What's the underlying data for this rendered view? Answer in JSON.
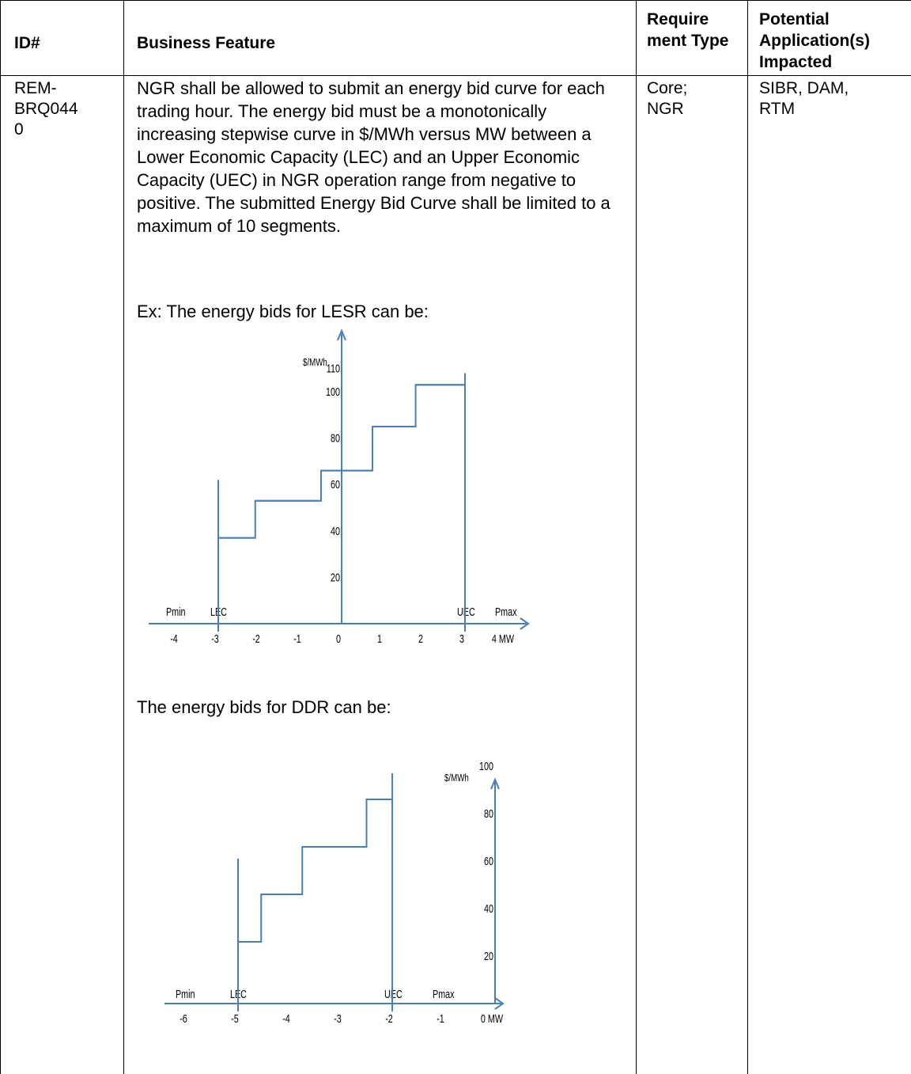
{
  "table": {
    "headers": {
      "id": "ID#",
      "feature": "Business Feature",
      "type": "Require ment Type",
      "apps": "Potential Application(s) Impacted"
    },
    "row": {
      "id_lines": [
        "REM-",
        "BRQ044",
        "0"
      ],
      "type_lines": [
        "Core;",
        "NGR"
      ],
      "apps_lines": [
        "SIBR, DAM,",
        "RTM"
      ],
      "description": "NGR shall be allowed to submit an energy bid curve for each trading hour. The energy bid must be a monotonically increasing stepwise curve in $/MWh versus MW between a Lower Economic Capacity (LEC) and an Upper Economic Capacity (UEC) in NGR operation range from negative to positive. The submitted Energy Bid Curve shall be limited to a maximum of 10 segments.",
      "example_lesr_label": "Ex: The energy bids for LESR can be:",
      "example_ddr_label": "The energy bids for DDR can be:"
    }
  },
  "chart_data": [
    {
      "type": "line",
      "series_style": "step",
      "ylabel": "$/MWh",
      "xlabel_unit": "MW",
      "x_ticks": [
        -4,
        -3,
        -2,
        -1,
        0,
        1,
        2,
        3,
        4
      ],
      "x_tick_labels": [
        "-4",
        "-3",
        "-2",
        "-1",
        "0",
        "1",
        "2",
        "3",
        "4 MW"
      ],
      "y_ticks": [
        20,
        40,
        60,
        80,
        100,
        110
      ],
      "y_tick_labels": [
        "20",
        "40",
        "60",
        "80",
        "100",
        "110"
      ],
      "xlim": [
        -4.5,
        4.8
      ],
      "ylim": [
        0,
        120
      ],
      "markers": [
        {
          "label": "Pmin",
          "x": -4
        },
        {
          "label": "LEC",
          "x": -3
        },
        {
          "label": "UEC",
          "x": 3
        },
        {
          "label": "Pmax",
          "x": 4
        }
      ],
      "lec": -3,
      "uec": 3,
      "lec_line_top": 62,
      "uec_line_top": 108,
      "steps": [
        {
          "x_start": -3,
          "x_end": -2.1,
          "price": 37
        },
        {
          "x_start": -2.1,
          "x_end": -0.5,
          "price": 53
        },
        {
          "x_start": -0.5,
          "x_end": 0.75,
          "price": 66
        },
        {
          "x_start": 0.75,
          "x_end": 1.8,
          "price": 85
        },
        {
          "x_start": 1.8,
          "x_end": 3,
          "price": 103
        }
      ]
    },
    {
      "type": "line",
      "series_style": "step",
      "ylabel": "$/MWh",
      "xlabel_unit": "MW",
      "x_ticks": [
        -6,
        -5,
        -4,
        -3,
        -2,
        -1,
        0
      ],
      "x_tick_labels": [
        "-6",
        "-5",
        "-4",
        "-3",
        "-2",
        "-1",
        "0 MW"
      ],
      "y_ticks": [
        20,
        40,
        60,
        80,
        100
      ],
      "y_tick_labels": [
        "20",
        "40",
        "60",
        "80",
        "100"
      ],
      "xlim": [
        -6.5,
        0.1
      ],
      "ylim": [
        0,
        105
      ],
      "markers": [
        {
          "label": "Pmin",
          "x": -6
        },
        {
          "label": "LEC",
          "x": -5
        },
        {
          "label": "UEC",
          "x": -2
        },
        {
          "label": "Pmax",
          "x": -1
        }
      ],
      "lec": -5,
      "uec": -2,
      "lec_line_top": 61,
      "uec_line_top": 97,
      "steps": [
        {
          "x_start": -5,
          "x_end": -4.55,
          "price": 26
        },
        {
          "x_start": -4.55,
          "x_end": -3.75,
          "price": 46
        },
        {
          "x_start": -3.75,
          "x_end": -2.5,
          "price": 66
        },
        {
          "x_start": -2.5,
          "x_end": -2,
          "price": 86
        }
      ]
    }
  ]
}
